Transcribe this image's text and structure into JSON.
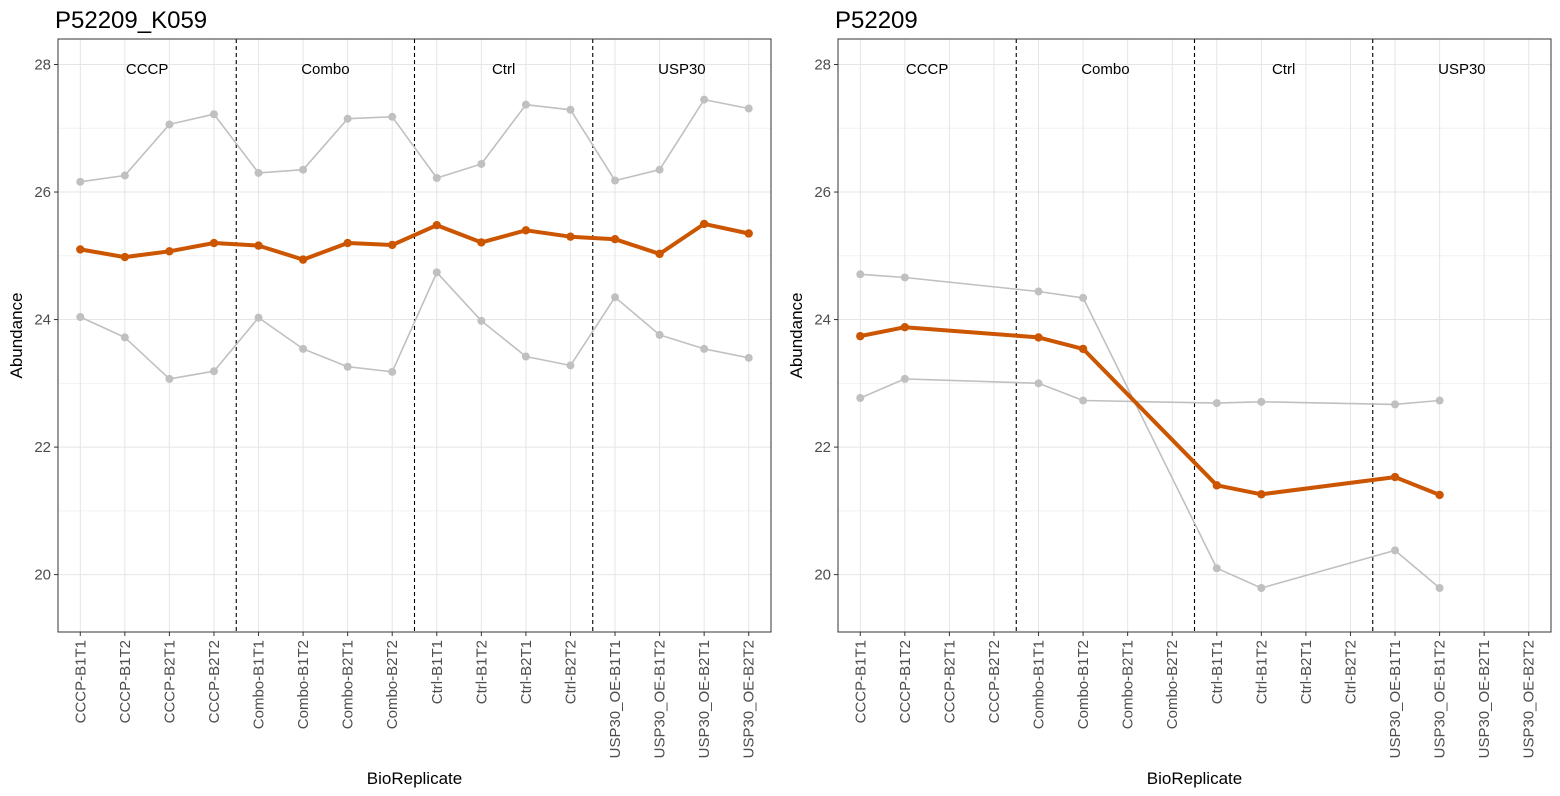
{
  "chart_data": [
    {
      "type": "line",
      "title": "P52209_K059",
      "xlabel": "BioReplicate",
      "ylabel": "Abundance",
      "ylim": [
        19.1,
        28.4
      ],
      "yticks": [
        20,
        22,
        24,
        26,
        28
      ],
      "grid": true,
      "categories": [
        "CCCP-B1T1",
        "CCCP-B1T2",
        "CCCP-B2T1",
        "CCCP-B2T2",
        "Combo-B1T1",
        "Combo-B1T2",
        "Combo-B2T1",
        "Combo-B2T2",
        "Ctrl-B1T1",
        "Ctrl-B1T2",
        "Ctrl-B2T1",
        "Ctrl-B2T2",
        "USP30_OE-B1T1",
        "USP30_OE-B1T2",
        "USP30_OE-B2T1",
        "USP30_OE-B2T2"
      ],
      "groups": [
        "CCCP",
        "Combo",
        "Ctrl",
        "USP30"
      ],
      "group_size": 4,
      "series": [
        {
          "role": "main",
          "color": "#cc5500",
          "values": [
            25.1,
            24.98,
            25.07,
            25.2,
            25.16,
            24.94,
            25.2,
            25.17,
            25.48,
            25.21,
            25.4,
            25.3,
            25.26,
            25.03,
            25.5,
            25.35
          ]
        },
        {
          "role": "upper",
          "color": "#c0c0c0",
          "values": [
            26.16,
            26.26,
            27.06,
            27.22,
            26.3,
            26.35,
            27.15,
            27.18,
            26.22,
            26.44,
            27.37,
            27.29,
            26.18,
            26.35,
            27.45,
            27.31
          ]
        },
        {
          "role": "lower",
          "color": "#c0c0c0",
          "values": [
            24.04,
            23.72,
            23.07,
            23.19,
            24.03,
            23.54,
            23.26,
            23.18,
            24.74,
            23.98,
            23.42,
            23.28,
            24.35,
            23.76,
            23.54,
            23.4
          ]
        }
      ]
    },
    {
      "type": "line",
      "title": "P52209",
      "xlabel": "BioReplicate",
      "ylabel": "Abundance",
      "ylim": [
        19.1,
        28.4
      ],
      "yticks": [
        20,
        22,
        24,
        26,
        28
      ],
      "grid": true,
      "categories": [
        "CCCP-B1T1",
        "CCCP-B1T2",
        "CCCP-B2T1",
        "CCCP-B2T2",
        "Combo-B1T1",
        "Combo-B1T2",
        "Combo-B2T1",
        "Combo-B2T2",
        "Ctrl-B1T1",
        "Ctrl-B1T2",
        "Ctrl-B2T1",
        "Ctrl-B2T2",
        "USP30_OE-B1T1",
        "USP30_OE-B1T2",
        "USP30_OE-B2T1",
        "USP30_OE-B2T2"
      ],
      "groups": [
        "CCCP",
        "Combo",
        "Ctrl",
        "USP30"
      ],
      "group_size": 4,
      "series": [
        {
          "role": "main",
          "color": "#cc5500",
          "values": [
            23.74,
            23.88,
            null,
            null,
            23.72,
            23.54,
            null,
            null,
            21.4,
            21.26,
            null,
            null,
            21.53,
            21.25,
            null,
            null
          ]
        },
        {
          "role": "upper",
          "color": "#c0c0c0",
          "values": [
            24.71,
            24.66,
            null,
            null,
            24.44,
            24.34,
            null,
            null,
            20.1,
            19.79,
            null,
            null,
            20.38,
            19.79,
            null,
            null
          ]
        },
        {
          "role": "lower",
          "color": "#c0c0c0",
          "values": [
            22.77,
            23.07,
            null,
            null,
            23.0,
            22.73,
            null,
            null,
            22.69,
            22.71,
            null,
            null,
            22.67,
            22.73,
            null,
            null
          ]
        }
      ]
    }
  ]
}
